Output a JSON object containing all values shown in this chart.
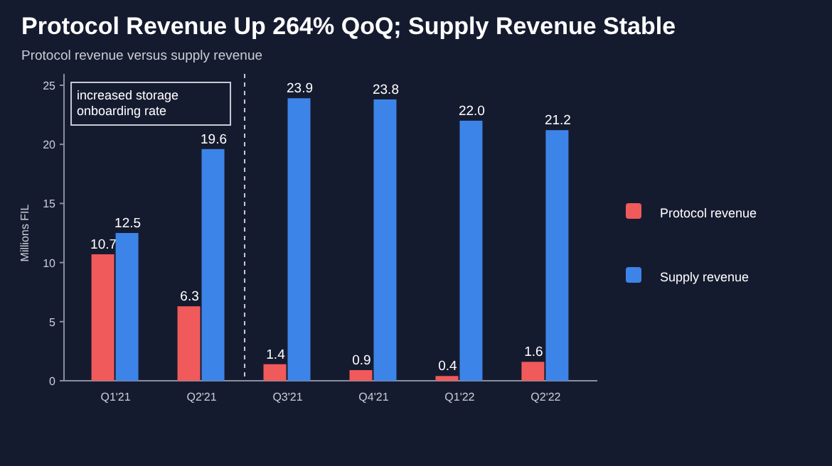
{
  "chart_data": {
    "type": "bar",
    "title": "Protocol Revenue Up 264% QoQ; Supply Revenue Stable",
    "subtitle": "Protocol revenue versus supply revenue",
    "ylabel": "Millions FIL",
    "categories": [
      "Q1'21",
      "Q2'21",
      "Q3'21",
      "Q4'21",
      "Q1'22",
      "Q2'22"
    ],
    "series": [
      {
        "name": "Protocol revenue",
        "color": "#f05a5b",
        "values": [
          10.7,
          6.3,
          1.4,
          0.9,
          0.4,
          1.6
        ],
        "value_labels": [
          "10.7",
          "6.3",
          "1.4",
          "0.9",
          "0.4",
          "1.6"
        ]
      },
      {
        "name": "Supply revenue",
        "color": "#3d84e8",
        "values": [
          12.5,
          19.6,
          23.9,
          23.8,
          22.0,
          21.2
        ],
        "value_labels": [
          "12.5",
          "19.6",
          "23.9",
          "23.8",
          "22.0",
          "21.2"
        ]
      }
    ],
    "ylim": [
      0,
      25
    ],
    "yticks": [
      0,
      5,
      10,
      15,
      20,
      25
    ],
    "legend": "right",
    "annotations": [
      "increased storage onboarding rate"
    ]
  }
}
